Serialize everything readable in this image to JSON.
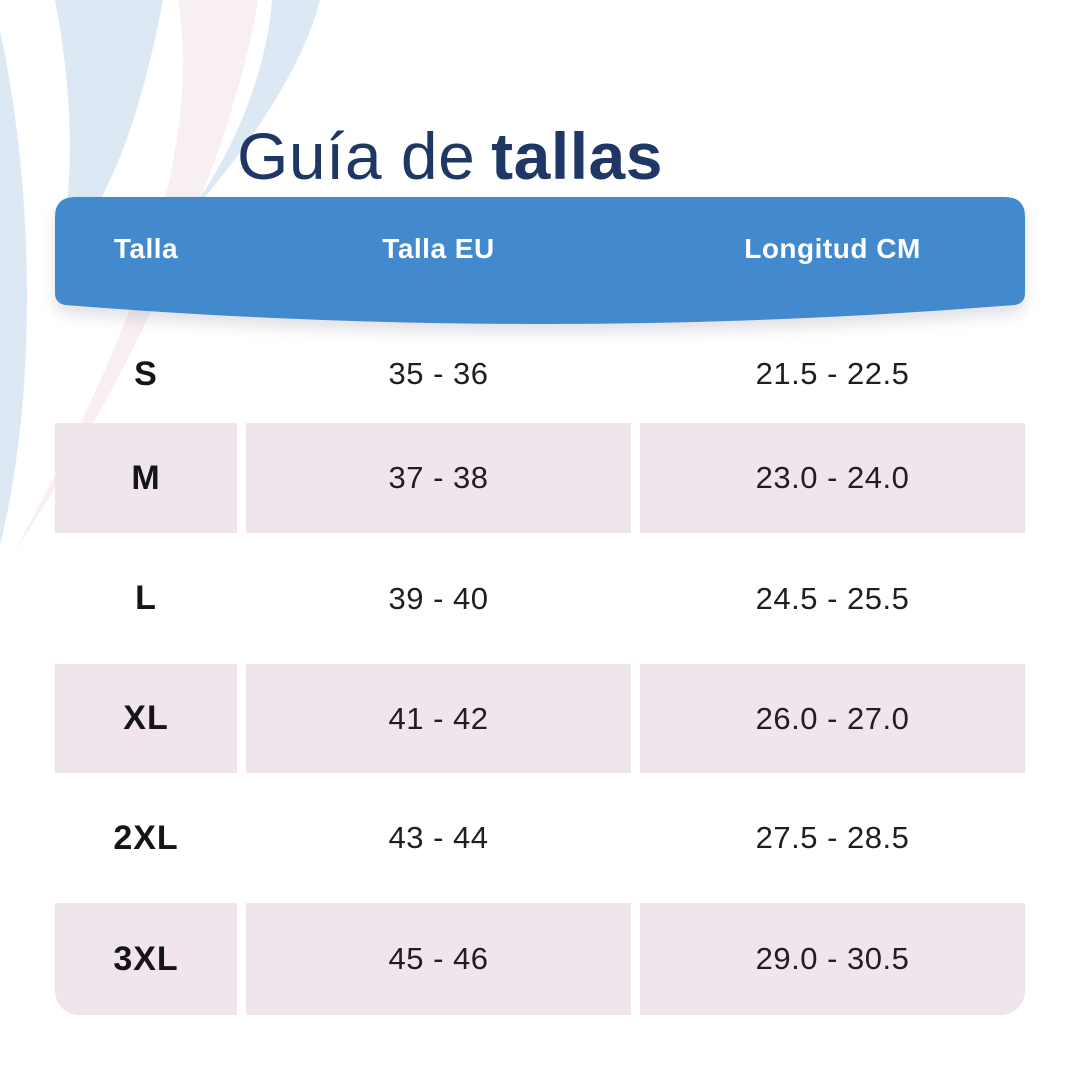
{
  "title": {
    "regular": "Guía de",
    "bold": "tallas"
  },
  "table": {
    "headers": [
      "Talla",
      "Talla EU",
      "Longitud CM"
    ],
    "rows": [
      {
        "size": "S",
        "eu": "35 - 36",
        "length_cm": "21.5 - 22.5"
      },
      {
        "size": "M",
        "eu": "37 - 38",
        "length_cm": "23.0 - 24.0"
      },
      {
        "size": "L",
        "eu": "39 - 40",
        "length_cm": "24.5 - 25.5"
      },
      {
        "size": "XL",
        "eu": "41 - 42",
        "length_cm": "26.0 - 27.0"
      },
      {
        "size": "2XL",
        "eu": "43 - 44",
        "length_cm": "27.5 - 28.5"
      },
      {
        "size": "3XL",
        "eu": "45 - 46",
        "length_cm": "29.0 - 30.5"
      }
    ]
  },
  "colors": {
    "title_navy": "#1e3765",
    "header_blue": "#4289ce",
    "header_text": "#ffffff",
    "row_pink": "#f0e4ed",
    "body_text": "#1f1e22",
    "wave_blue": "#dce9f4",
    "wave_pink": "#f8eff3"
  },
  "icons": {
    "decoration": "wave-swirl"
  }
}
